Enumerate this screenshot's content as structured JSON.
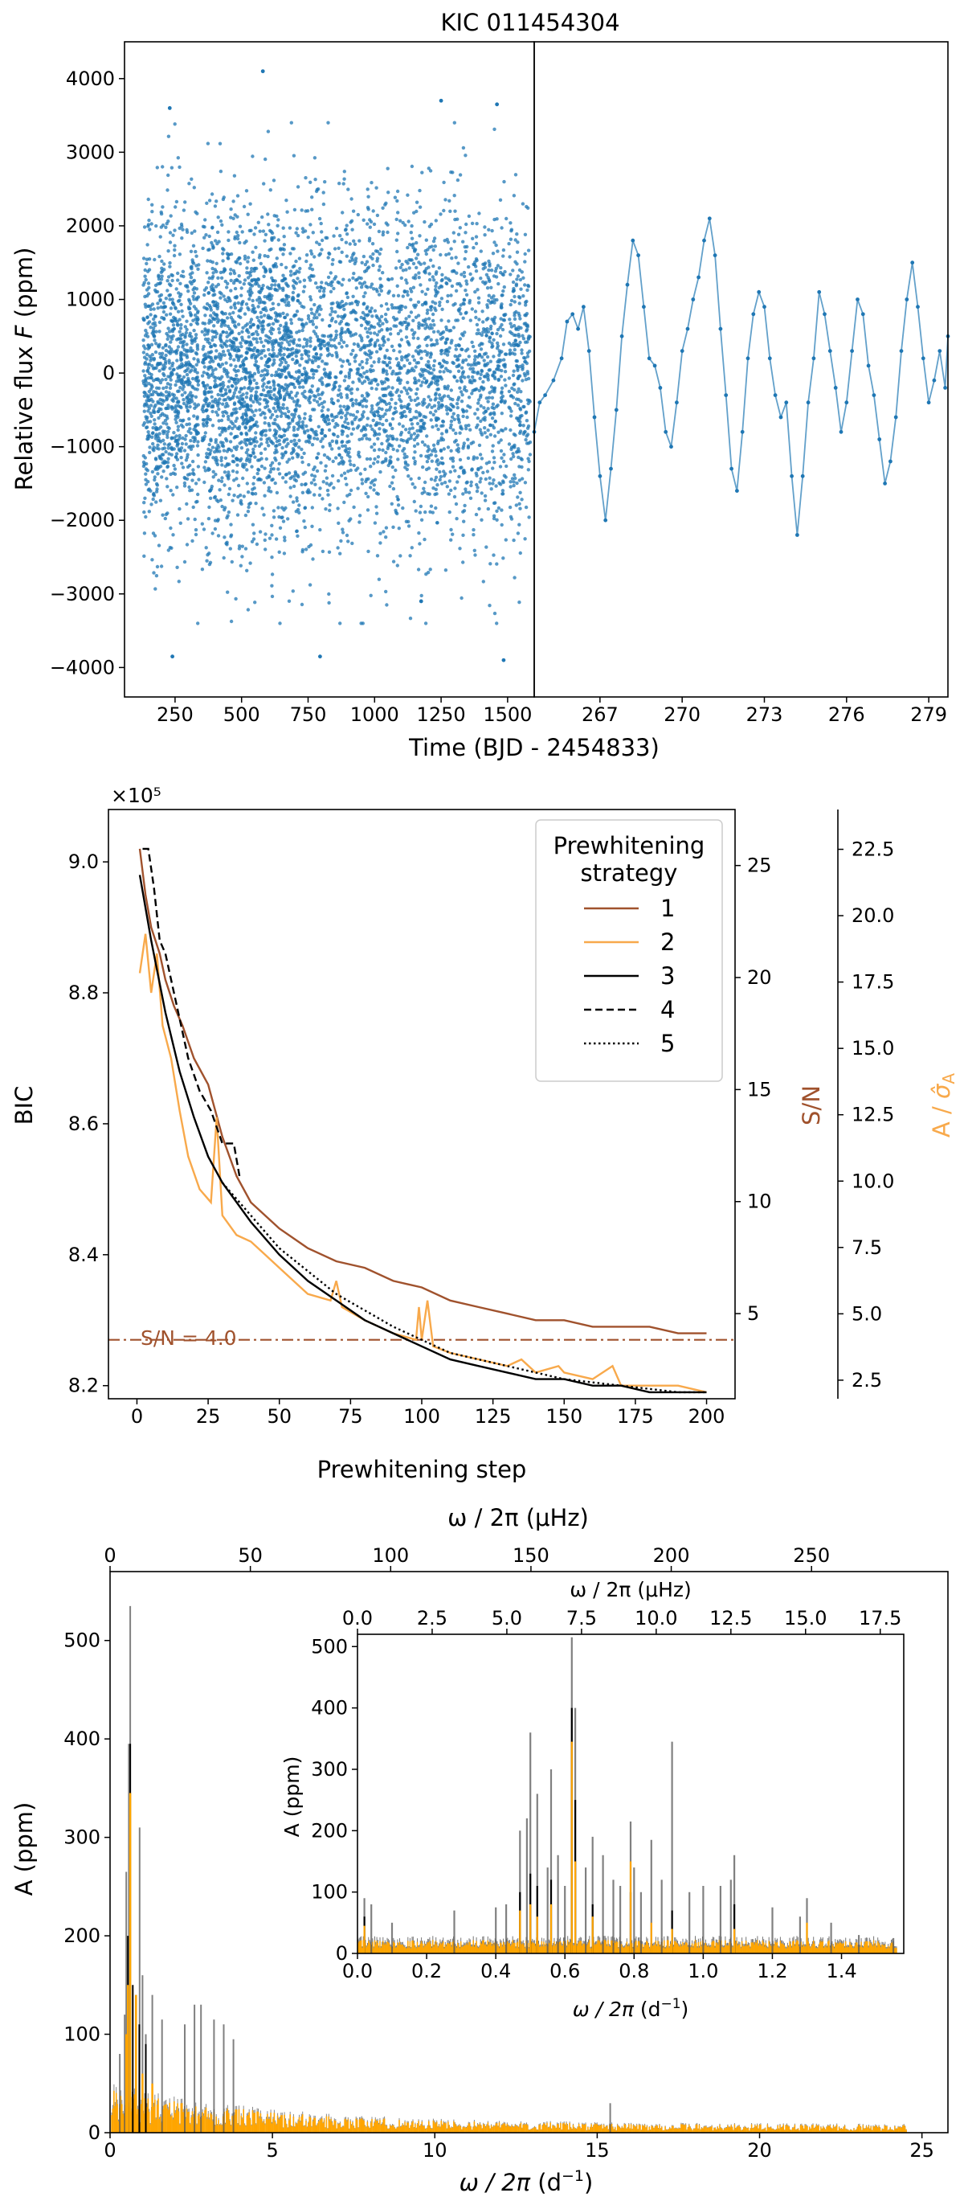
{
  "chart_data": [
    {
      "type": "scatter",
      "title": "KIC 011454304",
      "ylabel_pre": "Relative flux ",
      "ylabel_var": "F",
      "ylabel_post": " (ppm)",
      "xlabel": "Time (BJD - 2454833)",
      "ylim": [
        -4400,
        4500
      ],
      "yticks": [
        -4000,
        -3000,
        -2000,
        -1000,
        0,
        1000,
        2000,
        3000,
        4000
      ],
      "left_panel": {
        "xlim": [
          60,
          1600
        ],
        "xticks": [
          250,
          500,
          750,
          1000,
          1250,
          1500
        ],
        "segments": [
          [
            131,
            720,
            1100
          ],
          [
            725,
            1585,
            1150
          ]
        ],
        "gaps": [
          [
            340,
            352
          ],
          [
            1495,
            1505
          ]
        ],
        "outliers": [
          [
            240,
            -3850
          ],
          [
            795,
            -3850
          ],
          [
            1485,
            -3900
          ],
          [
            580,
            4100
          ],
          [
            1250,
            3700
          ],
          [
            230,
            3600
          ],
          [
            1460,
            3650
          ],
          [
            1175,
            -3100
          ]
        ],
        "series_color": "#1f77b4"
      },
      "right_panel": {
        "xlim": [
          264.6,
          279.7
        ],
        "xticks": [
          267,
          270,
          273,
          276,
          279
        ],
        "points": [
          [
            264.6,
            -800
          ],
          [
            264.8,
            -400
          ],
          [
            265.0,
            -300
          ],
          [
            265.3,
            -100
          ],
          [
            265.6,
            200
          ],
          [
            265.8,
            700
          ],
          [
            266.0,
            800
          ],
          [
            266.2,
            600
          ],
          [
            266.4,
            900
          ],
          [
            266.6,
            300
          ],
          [
            266.8,
            -600
          ],
          [
            267.0,
            -1400
          ],
          [
            267.2,
            -2000
          ],
          [
            267.4,
            -1300
          ],
          [
            267.6,
            -500
          ],
          [
            267.8,
            500
          ],
          [
            268.0,
            1200
          ],
          [
            268.2,
            1800
          ],
          [
            268.4,
            1600
          ],
          [
            268.6,
            900
          ],
          [
            268.8,
            200
          ],
          [
            269.0,
            100
          ],
          [
            269.2,
            -200
          ],
          [
            269.4,
            -800
          ],
          [
            269.6,
            -1000
          ],
          [
            269.8,
            -400
          ],
          [
            270.0,
            300
          ],
          [
            270.2,
            600
          ],
          [
            270.4,
            1000
          ],
          [
            270.6,
            1300
          ],
          [
            270.8,
            1800
          ],
          [
            271.0,
            2100
          ],
          [
            271.2,
            1600
          ],
          [
            271.4,
            600
          ],
          [
            271.6,
            -300
          ],
          [
            271.8,
            -1300
          ],
          [
            272.0,
            -1600
          ],
          [
            272.2,
            -800
          ],
          [
            272.4,
            200
          ],
          [
            272.6,
            800
          ],
          [
            272.8,
            1100
          ],
          [
            273.0,
            900
          ],
          [
            273.2,
            200
          ],
          [
            273.4,
            -300
          ],
          [
            273.6,
            -600
          ],
          [
            273.8,
            -400
          ],
          [
            274.0,
            -1400
          ],
          [
            274.2,
            -2200
          ],
          [
            274.4,
            -1400
          ],
          [
            274.6,
            -400
          ],
          [
            274.8,
            200
          ],
          [
            275.0,
            1100
          ],
          [
            275.2,
            800
          ],
          [
            275.4,
            300
          ],
          [
            275.6,
            -200
          ],
          [
            275.8,
            -800
          ],
          [
            276.0,
            -400
          ],
          [
            276.2,
            300
          ],
          [
            276.4,
            1000
          ],
          [
            276.6,
            800
          ],
          [
            276.8,
            100
          ],
          [
            277.0,
            -300
          ],
          [
            277.2,
            -900
          ],
          [
            277.4,
            -1500
          ],
          [
            277.6,
            -1200
          ],
          [
            277.8,
            -600
          ],
          [
            278.0,
            300
          ],
          [
            278.2,
            1000
          ],
          [
            278.4,
            1500
          ],
          [
            278.6,
            900
          ],
          [
            278.8,
            200
          ],
          [
            279.0,
            -400
          ],
          [
            279.2,
            -100
          ],
          [
            279.4,
            300
          ],
          [
            279.6,
            -200
          ],
          [
            279.7,
            500
          ]
        ]
      }
    },
    {
      "type": "line",
      "xlabel": "Prewhitening step",
      "ylabel": "BIC",
      "scale_label": "×10⁵",
      "xlim": [
        -10,
        210
      ],
      "ylim": [
        8.18,
        9.08
      ],
      "xticks": [
        0,
        25,
        50,
        75,
        100,
        125,
        150,
        175,
        200
      ],
      "yticks": [
        8.2,
        8.4,
        8.6,
        8.8,
        9.0
      ],
      "y2label": "S/N",
      "y2lim": [
        1.2,
        27.5
      ],
      "y2ticks": [
        5,
        10,
        15,
        20,
        25
      ],
      "y3label": "A / σ̂_A",
      "y3lim": [
        1.8,
        24
      ],
      "y3ticks": [
        2.5,
        5.0,
        7.5,
        10.0,
        12.5,
        15.0,
        17.5,
        20.0,
        22.5
      ],
      "threshold": {
        "y": 8.27,
        "label": "S/N = 4.0",
        "color": "#a0522d"
      },
      "legend": {
        "title_line1": "Prewhitening",
        "title_line2": "strategy",
        "entries": [
          "1",
          "2",
          "3",
          "4",
          "5"
        ],
        "position": "top-right"
      },
      "series": [
        {
          "key": "1",
          "color": "#a0522d",
          "style": "solid",
          "x": [
            1,
            3,
            5,
            8,
            10,
            13,
            16,
            20,
            25,
            30,
            35,
            40,
            45,
            50,
            60,
            70,
            80,
            90,
            100,
            110,
            120,
            130,
            140,
            150,
            160,
            170,
            180,
            190,
            200
          ],
          "y": [
            9.02,
            8.95,
            8.9,
            8.86,
            8.82,
            8.78,
            8.75,
            8.7,
            8.66,
            8.58,
            8.52,
            8.48,
            8.46,
            8.44,
            8.41,
            8.39,
            8.38,
            8.36,
            8.35,
            8.33,
            8.32,
            8.31,
            8.3,
            8.3,
            8.29,
            8.29,
            8.29,
            8.28,
            8.28
          ]
        },
        {
          "key": "2",
          "color": "#f8a94b",
          "style": "solid",
          "x": [
            1,
            3,
            5,
            7,
            9,
            12,
            15,
            18,
            22,
            26,
            28,
            30,
            35,
            40,
            45,
            50,
            60,
            68,
            70,
            72,
            80,
            90,
            98,
            99,
            100,
            102,
            104,
            110,
            120,
            130,
            135,
            140,
            148,
            150,
            160,
            167,
            170,
            180,
            190,
            200
          ],
          "y": [
            8.83,
            8.89,
            8.8,
            8.86,
            8.75,
            8.7,
            8.62,
            8.55,
            8.5,
            8.48,
            8.61,
            8.46,
            8.43,
            8.42,
            8.4,
            8.38,
            8.34,
            8.33,
            8.36,
            8.32,
            8.3,
            8.28,
            8.27,
            8.32,
            8.27,
            8.33,
            8.26,
            8.25,
            8.24,
            8.23,
            8.24,
            8.22,
            8.23,
            8.22,
            8.21,
            8.23,
            8.2,
            8.2,
            8.2,
            8.19
          ]
        },
        {
          "key": "3",
          "color": "#000000",
          "style": "solid",
          "x": [
            1,
            5,
            10,
            15,
            20,
            25,
            30,
            40,
            50,
            60,
            70,
            80,
            90,
            100,
            110,
            120,
            130,
            140,
            150,
            160,
            170,
            180,
            190,
            200
          ],
          "y": [
            8.98,
            8.88,
            8.77,
            8.68,
            8.61,
            8.55,
            8.51,
            8.45,
            8.4,
            8.36,
            8.33,
            8.3,
            8.28,
            8.26,
            8.24,
            8.23,
            8.22,
            8.21,
            8.21,
            8.2,
            8.2,
            8.19,
            8.19,
            8.19
          ]
        },
        {
          "key": "4",
          "color": "#000000",
          "style": "dashed",
          "x": [
            2,
            4,
            6,
            8,
            10,
            14,
            18,
            22,
            26,
            30,
            34,
            36
          ],
          "y": [
            9.02,
            9.02,
            8.96,
            8.88,
            8.86,
            8.78,
            8.7,
            8.65,
            8.62,
            8.57,
            8.57,
            8.52
          ]
        },
        {
          "key": "5",
          "color": "#000000",
          "style": "dotted",
          "x": [
            30,
            50,
            70,
            90,
            110,
            130,
            150,
            170,
            190,
            200
          ],
          "y": [
            8.51,
            8.41,
            8.34,
            8.29,
            8.25,
            8.23,
            8.21,
            8.2,
            8.19,
            8.19
          ]
        }
      ]
    },
    {
      "type": "bar",
      "xlabel_sym": "ω / 2π",
      "xlabel_unit": " (d",
      "xlabel_sup": "−1",
      "xlabel_end": ")",
      "ylabel": "A (ppm)",
      "top_xlabel": "ω / 2π (μHz)",
      "xlim": [
        0,
        25.8
      ],
      "ylim": [
        0,
        570
      ],
      "xticks": [
        0,
        5,
        10,
        15,
        20,
        25
      ],
      "yticks": [
        0,
        100,
        200,
        300,
        400,
        500
      ],
      "top_xticks": [
        0,
        50,
        100,
        150,
        200,
        250
      ],
      "series": [
        {
          "name": "gray",
          "color": "#555555",
          "peaks": [
            [
              0.62,
              535
            ],
            [
              0.58,
              395
            ],
            [
              0.5,
              265
            ],
            [
              0.91,
              310
            ],
            [
              1.0,
              160
            ],
            [
              0.8,
              140
            ],
            [
              0.3,
              80
            ],
            [
              0.45,
              120
            ],
            [
              1.1,
              100
            ],
            [
              1.3,
              140
            ],
            [
              1.6,
              115
            ],
            [
              2.3,
              110
            ],
            [
              2.6,
              130
            ],
            [
              2.8,
              130
            ],
            [
              3.2,
              115
            ],
            [
              3.5,
              110
            ],
            [
              3.8,
              95
            ],
            [
              15.4,
              30
            ]
          ]
        },
        {
          "name": "black",
          "color": "#000000",
          "peaks": [
            [
              0.62,
              395
            ],
            [
              0.55,
              200
            ],
            [
              0.7,
              150
            ],
            [
              0.9,
              110
            ],
            [
              1.1,
              90
            ]
          ]
        },
        {
          "name": "orange",
          "color": "#ffa500",
          "peaks": [
            [
              0.62,
              345
            ],
            [
              0.55,
              150
            ],
            [
              0.8,
              140
            ],
            [
              0.5,
              100
            ],
            [
              1.0,
              60
            ],
            [
              1.3,
              50
            ]
          ]
        }
      ],
      "inset": {
        "xlabel_sym": "ω / 2π",
        "xlabel_unit": " (d",
        "xlabel_sup": "−1",
        "xlabel_end": ")",
        "top_xlabel": "ω / 2π (μHz)",
        "ylabel": "A (ppm)",
        "xlim": [
          0,
          1.58
        ],
        "ylim": [
          0,
          520
        ],
        "xticks": [
          0.0,
          0.2,
          0.4,
          0.6,
          0.8,
          1.0,
          1.2,
          1.4
        ],
        "yticks": [
          0,
          100,
          200,
          300,
          400,
          500
        ],
        "top_xticks": [
          0.0,
          2.5,
          5.0,
          7.5,
          10.0,
          12.5,
          15.0,
          17.5
        ],
        "gray_peaks": [
          [
            0.02,
            90
          ],
          [
            0.04,
            80
          ],
          [
            0.1,
            50
          ],
          [
            0.28,
            70
          ],
          [
            0.4,
            75
          ],
          [
            0.43,
            80
          ],
          [
            0.47,
            200
          ],
          [
            0.49,
            220
          ],
          [
            0.5,
            360
          ],
          [
            0.52,
            260
          ],
          [
            0.55,
            140
          ],
          [
            0.56,
            300
          ],
          [
            0.58,
            160
          ],
          [
            0.6,
            110
          ],
          [
            0.62,
            515
          ],
          [
            0.63,
            400
          ],
          [
            0.66,
            140
          ],
          [
            0.68,
            190
          ],
          [
            0.71,
            160
          ],
          [
            0.74,
            120
          ],
          [
            0.76,
            110
          ],
          [
            0.79,
            215
          ],
          [
            0.8,
            140
          ],
          [
            0.82,
            100
          ],
          [
            0.85,
            185
          ],
          [
            0.88,
            120
          ],
          [
            0.91,
            345
          ],
          [
            0.96,
            100
          ],
          [
            1.0,
            110
          ],
          [
            1.05,
            110
          ],
          [
            1.08,
            120
          ],
          [
            1.09,
            160
          ],
          [
            1.2,
            75
          ],
          [
            1.28,
            60
          ],
          [
            1.3,
            90
          ],
          [
            1.37,
            50
          ],
          [
            1.45,
            30
          ],
          [
            1.55,
            25
          ]
        ],
        "black_peaks": [
          [
            0.02,
            60
          ],
          [
            0.47,
            100
          ],
          [
            0.5,
            130
          ],
          [
            0.52,
            110
          ],
          [
            0.56,
            120
          ],
          [
            0.62,
            400
          ],
          [
            0.63,
            250
          ],
          [
            0.68,
            80
          ],
          [
            0.79,
            100
          ],
          [
            0.91,
            70
          ],
          [
            1.09,
            80
          ]
        ],
        "orange_peaks": [
          [
            0.02,
            45
          ],
          [
            0.47,
            70
          ],
          [
            0.5,
            80
          ],
          [
            0.52,
            60
          ],
          [
            0.56,
            80
          ],
          [
            0.62,
            345
          ],
          [
            0.63,
            150
          ],
          [
            0.68,
            60
          ],
          [
            0.79,
            150
          ],
          [
            0.85,
            50
          ],
          [
            0.91,
            40
          ],
          [
            1.09,
            40
          ],
          [
            1.3,
            50
          ]
        ]
      }
    }
  ]
}
